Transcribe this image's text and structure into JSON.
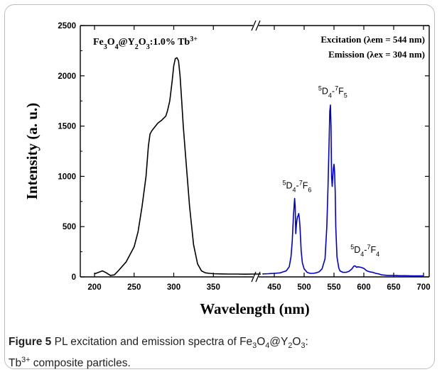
{
  "chart_data": {
    "type": "line",
    "xlabel": "Wavelength (nm)",
    "ylabel": "Intensity (a. u.)",
    "ylim": [
      0,
      2500
    ],
    "yticks": [
      0,
      500,
      1000,
      1500,
      2000,
      2500
    ],
    "xticks_left": [
      200,
      250,
      300,
      350
    ],
    "xticks_right": [
      450,
      500,
      550,
      600,
      650,
      700
    ],
    "axis_break": "//",
    "sample_label": "Fe3O4@Y2O3:1.0% Tb3+",
    "legend_lines": [
      "Excitation (λem = 544 nm)",
      "Emission (λex = 304 nm)"
    ],
    "grid": false,
    "series": [
      {
        "name": "Excitation (λem = 544 nm)",
        "color": "#000000",
        "x": [
          200,
          205,
          210,
          215,
          220,
          225,
          230,
          240,
          250,
          255,
          260,
          265,
          268,
          270,
          272,
          275,
          280,
          285,
          290,
          292,
          295,
          298,
          300,
          302,
          304,
          306,
          308,
          310,
          312,
          315,
          320,
          325,
          330,
          335,
          340,
          345,
          350,
          360,
          370,
          380,
          390,
          400,
          410
        ],
        "y": [
          30,
          45,
          60,
          40,
          15,
          20,
          60,
          150,
          300,
          450,
          700,
          1000,
          1300,
          1420,
          1450,
          1480,
          1530,
          1560,
          1600,
          1650,
          1750,
          1950,
          2100,
          2170,
          2180,
          2150,
          2000,
          1750,
          1500,
          1200,
          700,
          320,
          130,
          60,
          40,
          35,
          32,
          30,
          28,
          28,
          27,
          28,
          28
        ]
      },
      {
        "name": "Emission (λex = 304 nm)",
        "color": "#0000cc",
        "x": [
          430,
          440,
          450,
          460,
          470,
          475,
          478,
          480,
          482,
          484,
          485,
          486,
          487,
          488,
          489,
          490,
          491,
          492,
          493,
          494,
          495,
          497,
          500,
          505,
          510,
          515,
          520,
          525,
          530,
          535,
          538,
          540,
          542,
          543,
          544,
          545,
          546,
          547,
          548,
          549,
          550,
          551,
          552,
          553,
          555,
          558,
          560,
          565,
          570,
          575,
          580,
          583,
          585,
          588,
          590,
          595,
          600,
          605,
          610,
          615,
          620,
          625,
          630,
          640,
          650,
          660,
          670,
          680,
          690,
          700
        ],
        "y": [
          30,
          32,
          35,
          40,
          60,
          100,
          200,
          350,
          600,
          780,
          700,
          430,
          520,
          570,
          600,
          610,
          630,
          580,
          500,
          380,
          260,
          140,
          80,
          45,
          35,
          35,
          40,
          50,
          80,
          180,
          500,
          900,
          1400,
          1650,
          1710,
          1500,
          1000,
          900,
          1000,
          1080,
          1120,
          1050,
          850,
          500,
          200,
          90,
          60,
          45,
          45,
          55,
          80,
          105,
          110,
          95,
          100,
          95,
          85,
          60,
          50,
          45,
          35,
          30,
          20,
          15,
          15,
          12,
          12,
          10,
          10,
          10
        ]
      }
    ],
    "annotations": [
      {
        "sup1": "5",
        "main1": "D",
        "sub1": "4",
        "dash": "-",
        "sup2": "7",
        "main2": "F",
        "sub2": "6",
        "at_x": 488,
        "at_y": 880
      },
      {
        "sup1": "5",
        "main1": "D",
        "sub1": "4",
        "dash": "-",
        "sup2": "7",
        "main2": "F",
        "sub2": "5",
        "at_x": 548,
        "at_y": 1820
      },
      {
        "sup1": "5",
        "main1": "D",
        "sub1": "4",
        "dash": "-",
        "sup2": "7",
        "main2": "F",
        "sub2": "4",
        "at_x": 602,
        "at_y": 240
      }
    ]
  },
  "caption": {
    "figure_label": "Figure 5",
    "text_before": " PL excitation and emission spectra of Fe",
    "sub1": "3",
    "text2": "O",
    "sub2": "4",
    "text3": "@Y",
    "sub3": "2",
    "text4": "O",
    "sub4": "3",
    "text5": ":",
    "line2_main": "Tb",
    "line2_sup": "3+",
    "line2_rest": " composite particles."
  }
}
